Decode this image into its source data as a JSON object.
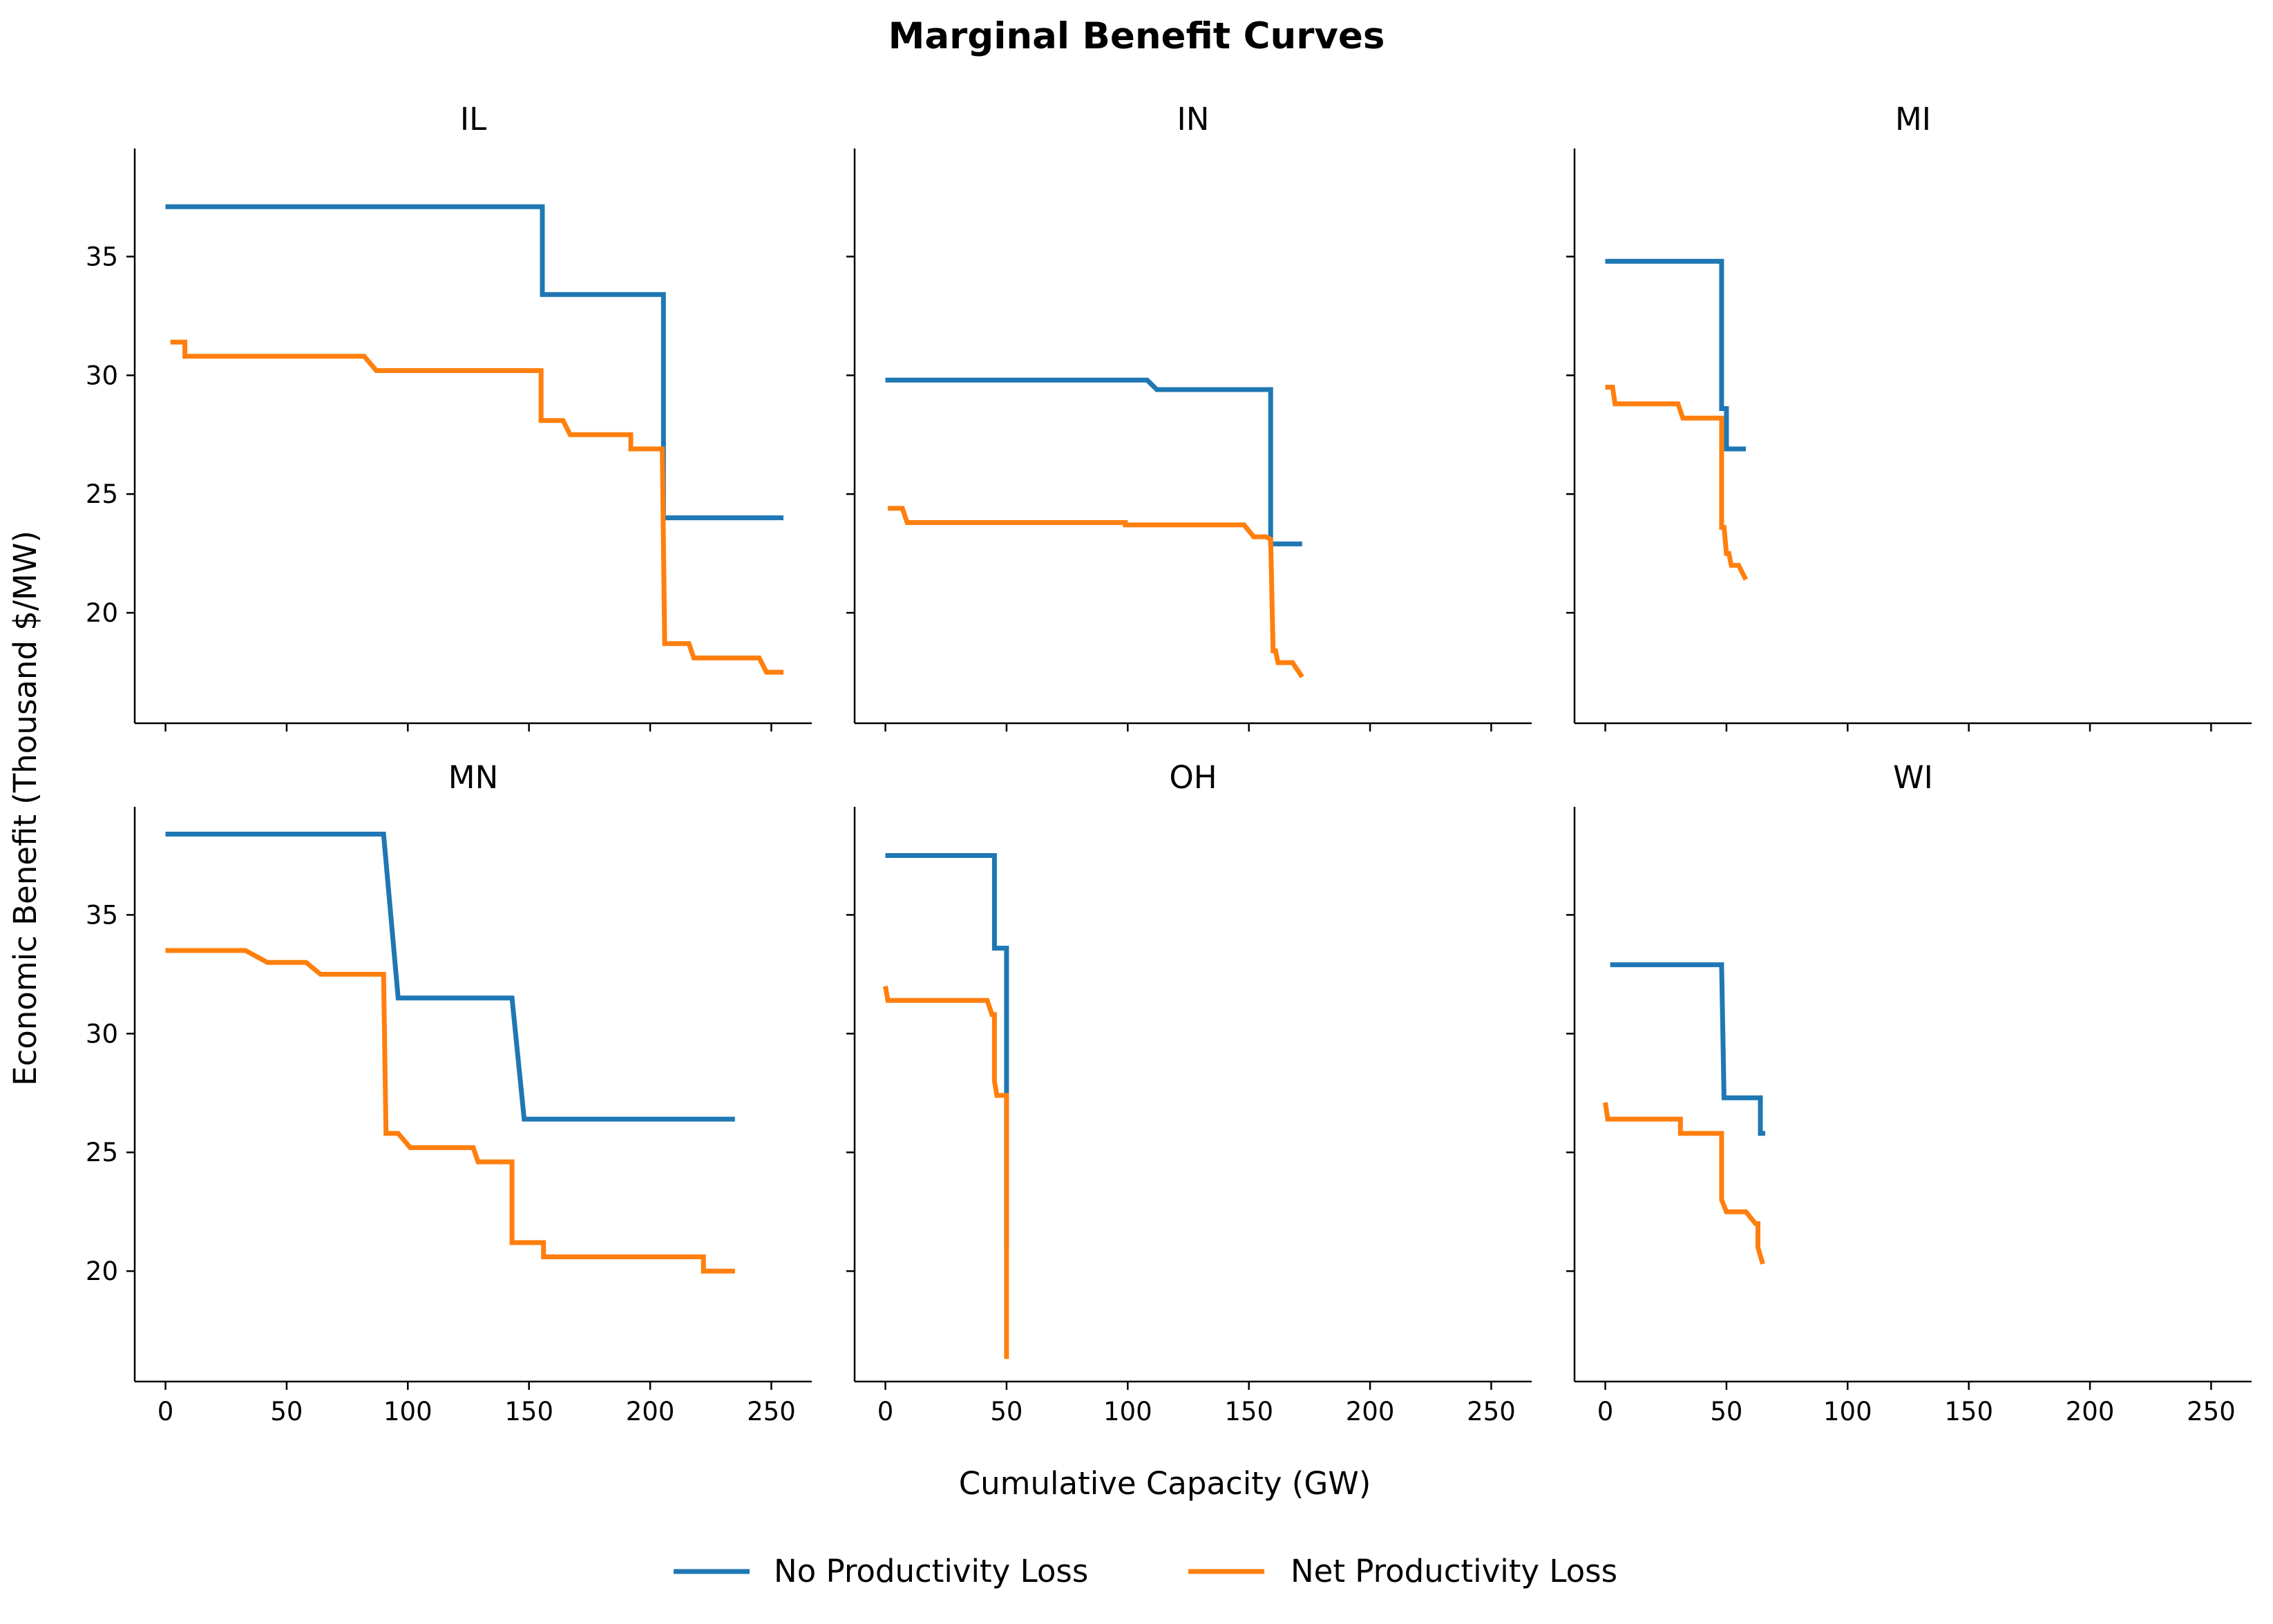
{
  "chart_data": {
    "type": "line",
    "title": "Marginal Benefit Curves",
    "xlabel": "Cumulative Capacity (GW)",
    "ylabel": "Economic Benefit (Thousand $/MW)",
    "xlim": [
      -12.7,
      266.7
    ],
    "ylim": [
      15.35,
      39.55
    ],
    "xticks": [
      0,
      50,
      100,
      150,
      200,
      250
    ],
    "yticks": [
      20,
      25,
      30,
      35
    ],
    "shared_axes": true,
    "grid": false,
    "legend": {
      "placement": "bottom-center",
      "entries": [
        {
          "name": "No Productivity Loss",
          "color": "#1f77b4"
        },
        {
          "name": "Net Productivity Loss",
          "color": "#ff7f0e"
        }
      ]
    },
    "panels": [
      {
        "title": "IL",
        "series": [
          {
            "name": "No Productivity Loss",
            "color": "#1f77b4",
            "points": [
              [
                0,
                37.1
              ],
              [
                155.5,
                37.1
              ],
              [
                155.5,
                33.4
              ],
              [
                205.5,
                33.4
              ],
              [
                205.5,
                24.0
              ],
              [
                255,
                24.0
              ]
            ]
          },
          {
            "name": "Net Productivity Loss",
            "color": "#ff7f0e",
            "points": [
              [
                2,
                31.4
              ],
              [
                8,
                31.4
              ],
              [
                8,
                30.8
              ],
              [
                82,
                30.8
              ],
              [
                87,
                30.2
              ],
              [
                155,
                30.2
              ],
              [
                155,
                28.1
              ],
              [
                164,
                28.1
              ],
              [
                167,
                27.5
              ],
              [
                192,
                27.5
              ],
              [
                192,
                26.9
              ],
              [
                205,
                26.9
              ],
              [
                206,
                18.7
              ],
              [
                216,
                18.7
              ],
              [
                218,
                18.1
              ],
              [
                245,
                18.1
              ],
              [
                248,
                17.5
              ],
              [
                255,
                17.5
              ]
            ]
          }
        ]
      },
      {
        "title": "IN",
        "series": [
          {
            "name": "No Productivity Loss",
            "color": "#1f77b4",
            "points": [
              [
                0,
                29.8
              ],
              [
                108,
                29.8
              ],
              [
                112,
                29.4
              ],
              [
                159,
                29.4
              ],
              [
                159,
                22.9
              ],
              [
                172,
                22.9
              ]
            ]
          },
          {
            "name": "Net Productivity Loss",
            "color": "#ff7f0e",
            "points": [
              [
                1,
                24.4
              ],
              [
                7,
                24.4
              ],
              [
                9,
                23.8
              ],
              [
                99,
                23.8
              ],
              [
                99,
                23.7
              ],
              [
                148,
                23.7
              ],
              [
                152,
                23.2
              ],
              [
                157,
                23.2
              ],
              [
                159,
                23.1
              ],
              [
                160,
                18.4
              ],
              [
                161,
                18.4
              ],
              [
                162,
                17.9
              ],
              [
                168,
                17.9
              ],
              [
                172,
                17.3
              ]
            ]
          }
        ]
      },
      {
        "title": "MI",
        "series": [
          {
            "name": "No Productivity Loss",
            "color": "#1f77b4",
            "points": [
              [
                0,
                34.8
              ],
              [
                48,
                34.8
              ],
              [
                48,
                28.6
              ],
              [
                50,
                28.6
              ],
              [
                50,
                26.9
              ],
              [
                58,
                26.9
              ]
            ]
          },
          {
            "name": "Net Productivity Loss",
            "color": "#ff7f0e",
            "points": [
              [
                0,
                29.5
              ],
              [
                3,
                29.5
              ],
              [
                4,
                28.8
              ],
              [
                30,
                28.8
              ],
              [
                32,
                28.2
              ],
              [
                48,
                28.2
              ],
              [
                48,
                23.6
              ],
              [
                49,
                23.6
              ],
              [
                50,
                22.5
              ],
              [
                51,
                22.5
              ],
              [
                52,
                22.0
              ],
              [
                55,
                22.0
              ],
              [
                58,
                21.4
              ]
            ]
          }
        ]
      },
      {
        "title": "MN",
        "series": [
          {
            "name": "No Productivity Loss",
            "color": "#1f77b4",
            "points": [
              [
                0,
                38.4
              ],
              [
                90,
                38.4
              ],
              [
                96,
                31.5
              ],
              [
                143,
                31.5
              ],
              [
                148,
                26.4
              ],
              [
                235,
                26.4
              ]
            ]
          },
          {
            "name": "Net Productivity Loss",
            "color": "#ff7f0e",
            "points": [
              [
                0,
                33.5
              ],
              [
                33,
                33.5
              ],
              [
                42,
                33.0
              ],
              [
                58,
                33.0
              ],
              [
                64,
                32.5
              ],
              [
                90,
                32.5
              ],
              [
                91,
                25.8
              ],
              [
                96,
                25.8
              ],
              [
                101,
                25.2
              ],
              [
                127,
                25.2
              ],
              [
                129,
                24.6
              ],
              [
                143,
                24.6
              ],
              [
                143,
                21.2
              ],
              [
                156,
                21.2
              ],
              [
                156,
                20.6
              ],
              [
                222,
                20.6
              ],
              [
                222,
                20.0
              ],
              [
                235,
                20.0
              ]
            ]
          }
        ]
      },
      {
        "title": "OH",
        "series": [
          {
            "name": "No Productivity Loss",
            "color": "#1f77b4",
            "points": [
              [
                0,
                37.5
              ],
              [
                45,
                37.5
              ],
              [
                45,
                33.6
              ],
              [
                50,
                33.6
              ],
              [
                50,
                21.0
              ]
            ]
          },
          {
            "name": "Net Productivity Loss",
            "color": "#ff7f0e",
            "points": [
              [
                0,
                32.0
              ],
              [
                1,
                31.4
              ],
              [
                42,
                31.4
              ],
              [
                44,
                30.8
              ],
              [
                45,
                30.8
              ],
              [
                45,
                28.0
              ],
              [
                46,
                27.4
              ],
              [
                50,
                27.4
              ],
              [
                50,
                16.3
              ]
            ]
          }
        ]
      },
      {
        "title": "WI",
        "series": [
          {
            "name": "No Productivity Loss",
            "color": "#1f77b4",
            "points": [
              [
                2,
                32.9
              ],
              [
                48,
                32.9
              ],
              [
                49,
                27.3
              ],
              [
                64,
                27.3
              ],
              [
                64,
                25.8
              ],
              [
                66,
                25.8
              ]
            ]
          },
          {
            "name": "Net Productivity Loss",
            "color": "#ff7f0e",
            "points": [
              [
                0,
                27.1
              ],
              [
                1,
                26.4
              ],
              [
                31,
                26.4
              ],
              [
                31,
                25.8
              ],
              [
                48,
                25.8
              ],
              [
                48,
                23.0
              ],
              [
                50,
                22.5
              ],
              [
                58,
                22.5
              ],
              [
                62,
                22.0
              ],
              [
                63,
                22.0
              ],
              [
                63,
                21.0
              ],
              [
                65,
                20.3
              ]
            ]
          }
        ]
      }
    ]
  }
}
